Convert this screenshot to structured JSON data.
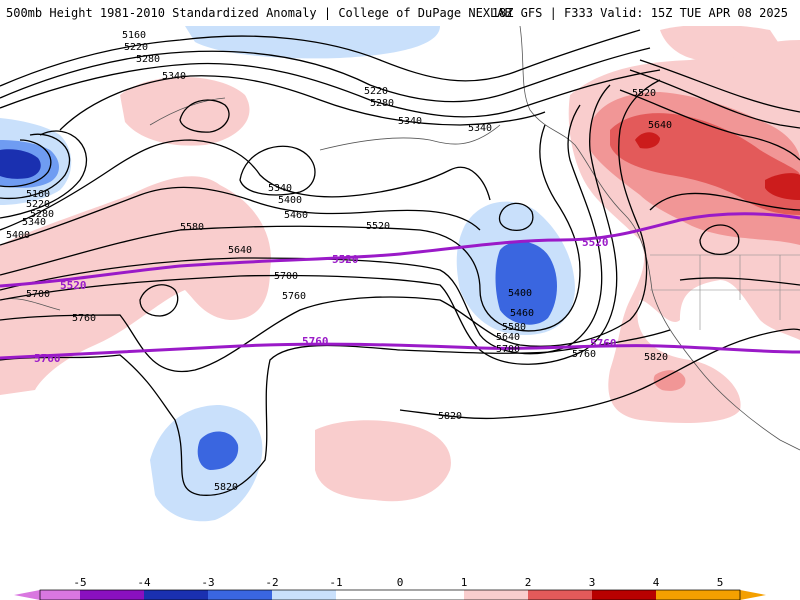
{
  "header": {
    "title_left": "500mb Height 1981-2010 Standardized Anomaly | College of DuPage NEXLAB",
    "title_right": "18Z GFS | F333 Valid: 15Z TUE APR 08 2025"
  },
  "contour_labels": {
    "l5160a": "5160",
    "l5220a": "5220",
    "l5280a": "5280",
    "l5340a": "5340",
    "l5220b": "5220",
    "l5280b": "5280",
    "l5340b": "5340",
    "l5340c": "5340",
    "l5340d": "5340",
    "l5160b": "5160",
    "l5220c": "5220",
    "l5280c": "5280",
    "l5340e": "5340",
    "l5400a": "5400",
    "l5400b": "5400",
    "l5460a": "5460",
    "l5520a": "5520",
    "l5580a": "5580",
    "l5640a": "5640",
    "l5700a": "5700",
    "l5760a": "5760",
    "l5700b": "5700",
    "l5760b": "5760",
    "l5400c": "5400",
    "l5460b": "5460",
    "l5580b": "5580",
    "l5640b": "5640",
    "l5700c": "5700",
    "l5760c": "5760",
    "l5820a": "5820",
    "l5820b": "5820",
    "l5820c": "5820",
    "l5520b": "5520",
    "l5640c": "5640"
  },
  "purple_labels": {
    "p5520a": "5520",
    "p5520b": "5520",
    "p5520c": "5520",
    "p5760a": "5760",
    "p5760b": "5760",
    "p5760c": "5760"
  },
  "colors": {
    "purple_line": "#9a1ac8",
    "neg5": "#d977e0",
    "neg4": "#8a10c0",
    "neg3": "#1a30b0",
    "neg2": "#3a66e0",
    "neg1": "#6f9cf2",
    "neg05": "#c9e0fb",
    "pos05": "#f9cdcd",
    "pos1": "#f19696",
    "pos2": "#e35a5a",
    "pos3": "#cc1c1c",
    "pos4": "#b80000",
    "pos5": "#f4a000"
  },
  "legend": {
    "ticks": [
      "-5",
      "-4",
      "-3",
      "-2",
      "-1",
      "0",
      "1",
      "2",
      "3",
      "4",
      "5"
    ]
  }
}
